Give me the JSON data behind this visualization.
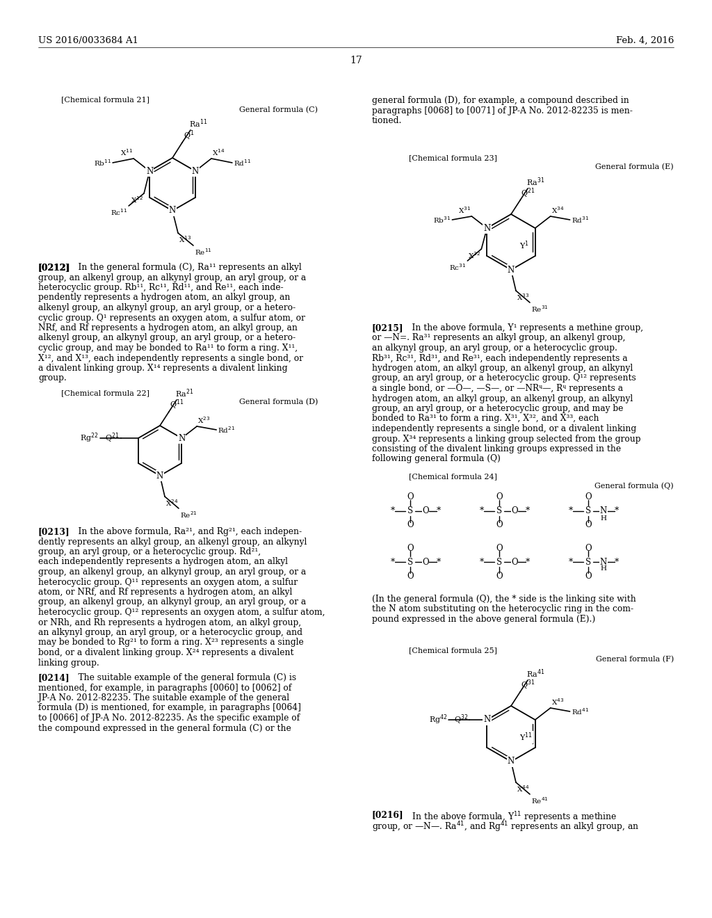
{
  "bg": "#ffffff",
  "header_left": "US 2016/0033684 A1",
  "header_right": "Feb. 4, 2016",
  "page_number": "17"
}
